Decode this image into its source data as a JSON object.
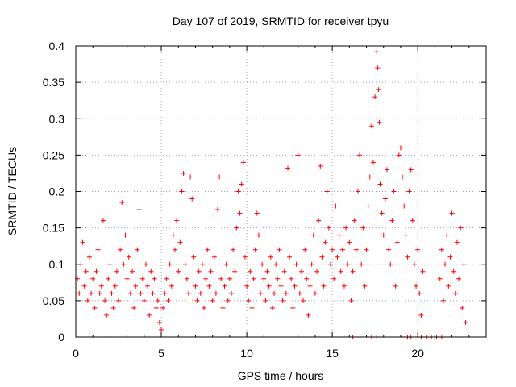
{
  "chart_data": {
    "type": "scatter",
    "title": "Day 107 of 2019, SRMTID for receiver tpyu",
    "xlabel": "GPS time / hours",
    "ylabel": "SRMTID / TECUs",
    "xlim": [
      0,
      24
    ],
    "ylim": [
      0,
      0.4
    ],
    "x_ticks": [
      0,
      5,
      10,
      15,
      20
    ],
    "x_tick_labels": [
      "0",
      "5",
      "10",
      "15",
      "20"
    ],
    "y_ticks": [
      0,
      0.05,
      0.1,
      0.15,
      0.2,
      0.25,
      0.3,
      0.35,
      0.4
    ],
    "y_tick_labels": [
      "0",
      "0.05",
      "0.1",
      "0.15",
      "0.2",
      "0.25",
      "0.3",
      "0.35",
      "0.4"
    ],
    "grid": true,
    "marker": "+",
    "colors": {
      "series": "#ff0000",
      "grid": "#a0a0a0",
      "axis": "#000000"
    },
    "series": [
      {
        "name": "SRMTID",
        "points": [
          [
            0.1,
            0.08
          ],
          [
            0.2,
            0.06
          ],
          [
            0.3,
            0.1
          ],
          [
            0.4,
            0.13
          ],
          [
            0.5,
            0.07
          ],
          [
            0.6,
            0.09
          ],
          [
            0.7,
            0.05
          ],
          [
            0.8,
            0.11
          ],
          [
            0.9,
            0.06
          ],
          [
            1.0,
            0.08
          ],
          [
            1.1,
            0.04
          ],
          [
            1.2,
            0.09
          ],
          [
            1.3,
            0.12
          ],
          [
            1.4,
            0.06
          ],
          [
            1.5,
            0.07
          ],
          [
            1.6,
            0.16
          ],
          [
            1.7,
            0.05
          ],
          [
            1.8,
            0.03
          ],
          [
            1.9,
            0.08
          ],
          [
            2.0,
            0.1
          ],
          [
            2.1,
            0.06
          ],
          [
            2.2,
            0.04
          ],
          [
            2.3,
            0.07
          ],
          [
            2.4,
            0.09
          ],
          [
            2.5,
            0.05
          ],
          [
            2.6,
            0.12
          ],
          [
            2.7,
            0.185
          ],
          [
            2.8,
            0.1
          ],
          [
            2.9,
            0.14
          ],
          [
            3.0,
            0.08
          ],
          [
            3.1,
            0.11
          ],
          [
            3.2,
            0.06
          ],
          [
            3.3,
            0.09
          ],
          [
            3.4,
            0.04
          ],
          [
            3.5,
            0.07
          ],
          [
            3.6,
            0.12
          ],
          [
            3.7,
            0.175
          ],
          [
            3.8,
            0.06
          ],
          [
            3.9,
            0.08
          ],
          [
            4.0,
            0.05
          ],
          [
            4.1,
            0.1
          ],
          [
            4.2,
            0.07
          ],
          [
            4.3,
            0.03
          ],
          [
            4.4,
            0.09
          ],
          [
            4.5,
            0.06
          ],
          [
            4.6,
            0.08
          ],
          [
            4.7,
            0.04
          ],
          [
            4.8,
            0.05
          ],
          [
            4.9,
            0.02
          ],
          [
            5.0,
            0.01
          ],
          [
            5.1,
            0.04
          ],
          [
            5.2,
            0.06
          ],
          [
            5.3,
            0.08
          ],
          [
            5.4,
            0.05
          ],
          [
            5.5,
            0.1
          ],
          [
            5.6,
            0.07
          ],
          [
            5.7,
            0.14
          ],
          [
            5.8,
            0.12
          ],
          [
            5.9,
            0.16
          ],
          [
            6.0,
            0.09
          ],
          [
            6.1,
            0.13
          ],
          [
            6.2,
            0.2
          ],
          [
            6.3,
            0.225
          ],
          [
            6.4,
            0.1
          ],
          [
            6.5,
            0.08
          ],
          [
            6.6,
            0.06
          ],
          [
            6.7,
            0.22
          ],
          [
            6.8,
            0.19
          ],
          [
            6.9,
            0.11
          ],
          [
            7.0,
            0.07
          ],
          [
            7.1,
            0.05
          ],
          [
            7.2,
            0.09
          ],
          [
            7.3,
            0.06
          ],
          [
            7.4,
            0.1
          ],
          [
            7.5,
            0.04
          ],
          [
            7.6,
            0.08
          ],
          [
            7.7,
            0.12
          ],
          [
            7.8,
            0.07
          ],
          [
            7.9,
            0.09
          ],
          [
            8.0,
            0.05
          ],
          [
            8.1,
            0.11
          ],
          [
            8.2,
            0.06
          ],
          [
            8.3,
            0.175
          ],
          [
            8.4,
            0.22
          ],
          [
            8.5,
            0.08
          ],
          [
            8.6,
            0.04
          ],
          [
            8.7,
            0.07
          ],
          [
            8.8,
            0.1
          ],
          [
            8.9,
            0.05
          ],
          [
            9.0,
            0.08
          ],
          [
            9.1,
            0.06
          ],
          [
            9.2,
            0.12
          ],
          [
            9.3,
            0.09
          ],
          [
            9.4,
            0.15
          ],
          [
            9.5,
            0.2
          ],
          [
            9.6,
            0.17
          ],
          [
            9.7,
            0.21
          ],
          [
            9.8,
            0.24
          ],
          [
            9.9,
            0.11
          ],
          [
            10.0,
            0.07
          ],
          [
            10.1,
            0.05
          ],
          [
            10.2,
            0.09
          ],
          [
            10.3,
            0.04
          ],
          [
            10.4,
            0.08
          ],
          [
            10.5,
            0.12
          ],
          [
            10.6,
            0.17
          ],
          [
            10.7,
            0.14
          ],
          [
            10.8,
            0.06
          ],
          [
            10.9,
            0.1
          ],
          [
            11.0,
            0.08
          ],
          [
            11.1,
            0.05
          ],
          [
            11.2,
            0.09
          ],
          [
            11.3,
            0.07
          ],
          [
            11.4,
            0.11
          ],
          [
            11.5,
            0.04
          ],
          [
            11.6,
            0.06
          ],
          [
            11.7,
            0.1
          ],
          [
            11.8,
            0.08
          ],
          [
            11.9,
            0.12
          ],
          [
            12.0,
            0.07
          ],
          [
            12.1,
            0.05
          ],
          [
            12.2,
            0.09
          ],
          [
            12.3,
            0.06
          ],
          [
            12.4,
            0.232
          ],
          [
            12.5,
            0.11
          ],
          [
            12.6,
            0.08
          ],
          [
            12.7,
            0.04
          ],
          [
            12.8,
            0.07
          ],
          [
            12.9,
            0.1
          ],
          [
            13.0,
            0.25
          ],
          [
            13.1,
            0.06
          ],
          [
            13.2,
            0.09
          ],
          [
            13.3,
            0.05
          ],
          [
            13.4,
            0.12
          ],
          [
            13.5,
            0.08
          ],
          [
            13.6,
            0.03
          ],
          [
            13.7,
            0.07
          ],
          [
            13.8,
            0.1
          ],
          [
            13.9,
            0.14
          ],
          [
            14.0,
            0.06
          ],
          [
            14.1,
            0.09
          ],
          [
            14.2,
            0.16
          ],
          [
            14.3,
            0.235
          ],
          [
            14.4,
            0.11
          ],
          [
            14.5,
            0.07
          ],
          [
            14.6,
            0.13
          ],
          [
            14.7,
            0.2
          ],
          [
            14.8,
            0.15
          ],
          [
            14.9,
            0.1
          ],
          [
            15.0,
            0.12
          ],
          [
            15.1,
            0.08
          ],
          [
            15.2,
            0.18
          ],
          [
            15.3,
            0.11
          ],
          [
            15.4,
            0.14
          ],
          [
            15.5,
            0.09
          ],
          [
            15.6,
            0.12
          ],
          [
            15.7,
            0.07
          ],
          [
            15.8,
            0.15
          ],
          [
            15.9,
            0.1
          ],
          [
            16.0,
            0.13
          ],
          [
            16.1,
            0.05
          ],
          [
            16.2,
            0.09
          ],
          [
            16.3,
            0.16
          ],
          [
            16.4,
            0.12
          ],
          [
            16.5,
            0.2
          ],
          [
            16.6,
            0.25
          ],
          [
            16.7,
            0.1
          ],
          [
            16.8,
            0.15
          ],
          [
            16.9,
            0.07
          ],
          [
            17.0,
            0.12
          ],
          [
            17.1,
            0.18
          ],
          [
            17.2,
            0.22
          ],
          [
            17.3,
            0.29
          ],
          [
            17.4,
            0.24
          ],
          [
            17.5,
            0.33
          ],
          [
            17.6,
            0.392
          ],
          [
            17.65,
            0.37
          ],
          [
            17.7,
            0.34
          ],
          [
            17.75,
            0.295
          ],
          [
            17.8,
            0.21
          ],
          [
            17.9,
            0.17
          ],
          [
            18.0,
            0.14
          ],
          [
            18.1,
            0.19
          ],
          [
            18.2,
            0.23
          ],
          [
            18.3,
            0.12
          ],
          [
            18.4,
            0.1
          ],
          [
            18.5,
            0.16
          ],
          [
            18.6,
            0.2
          ],
          [
            18.7,
            0.07
          ],
          [
            18.8,
            0.13
          ],
          [
            18.9,
            0.25
          ],
          [
            19.0,
            0.26
          ],
          [
            19.1,
            0.22
          ],
          [
            19.2,
            0.18
          ],
          [
            19.3,
            0.14
          ],
          [
            19.4,
            0.11
          ],
          [
            19.5,
            0.2
          ],
          [
            19.6,
            0.23
          ],
          [
            19.7,
            0.16
          ],
          [
            19.8,
            0.1
          ],
          [
            19.9,
            0.07
          ],
          [
            20.0,
            0.12
          ],
          [
            20.1,
            0.06
          ],
          [
            20.2,
            0.03
          ],
          [
            20.3,
            0.09
          ],
          [
            21.3,
            0.08
          ],
          [
            21.4,
            0.12
          ],
          [
            21.5,
            0.05
          ],
          [
            21.6,
            0.1
          ],
          [
            21.7,
            0.14
          ],
          [
            21.8,
            0.07
          ],
          [
            21.9,
            0.11
          ],
          [
            22.0,
            0.17
          ],
          [
            22.1,
            0.09
          ],
          [
            22.2,
            0.06
          ],
          [
            22.3,
            0.13
          ],
          [
            22.4,
            0.08
          ],
          [
            22.5,
            0.15
          ],
          [
            22.6,
            0.04
          ],
          [
            22.7,
            0.1
          ],
          [
            22.8,
            0.02
          ],
          [
            16.2,
            0.0
          ],
          [
            17.3,
            0.0
          ],
          [
            17.6,
            0.0
          ],
          [
            19.4,
            0.0
          ],
          [
            19.6,
            0.0
          ],
          [
            20.2,
            0.0
          ],
          [
            20.5,
            0.0
          ],
          [
            20.8,
            0.0
          ],
          [
            21.1,
            0.0
          ],
          [
            21.4,
            0.0
          ]
        ]
      }
    ]
  }
}
